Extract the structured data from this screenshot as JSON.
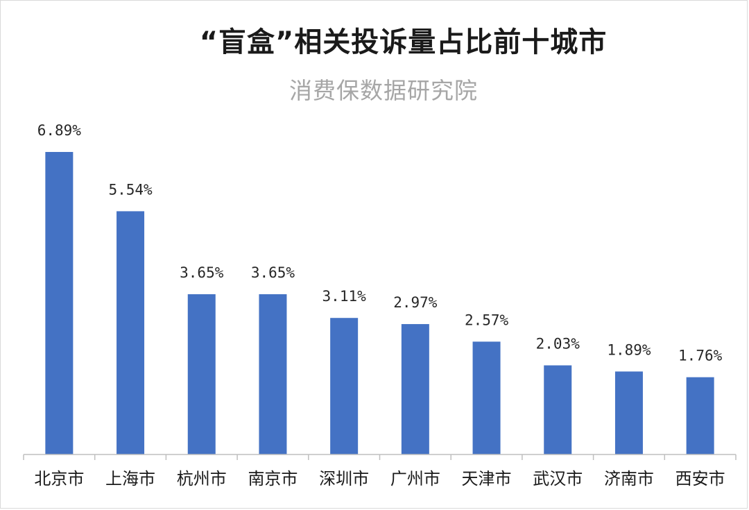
{
  "chart_data": {
    "type": "bar",
    "title": "“盲盒”相关投诉量占比前十城市",
    "subtitle": "消费保数据研究院",
    "categories": [
      "北京市",
      "上海市",
      "杭州市",
      "南京市",
      "深圳市",
      "广州市",
      "天津市",
      "武汉市",
      "济南市",
      "西安市"
    ],
    "values": [
      6.89,
      5.54,
      3.65,
      3.65,
      3.11,
      2.97,
      2.57,
      2.03,
      1.89,
      1.76
    ],
    "value_labels": [
      "6.89%",
      "5.54%",
      "3.65%",
      "3.65%",
      "3.11%",
      "2.97%",
      "2.57%",
      "2.03%",
      "1.89%",
      "1.76%"
    ],
    "ylim": [
      0,
      6.89
    ],
    "grid": false,
    "bar_color": "#4472c4",
    "axis_color": "#bfbfbf"
  }
}
